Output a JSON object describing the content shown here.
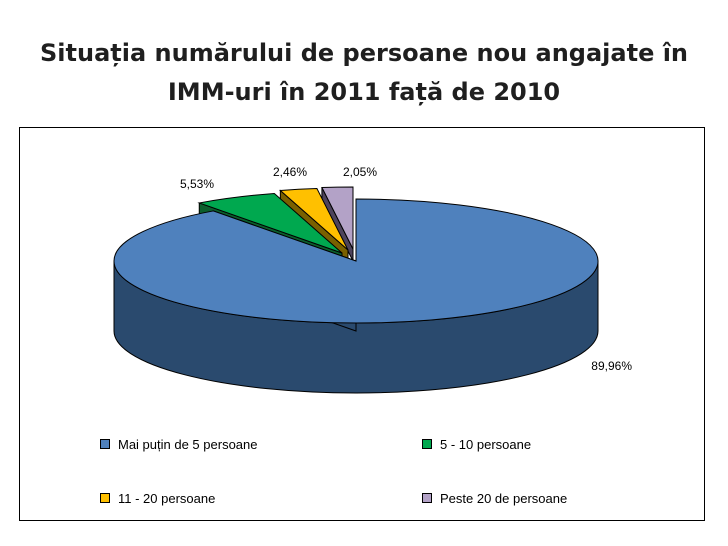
{
  "title": "Situația numărului de persoane nou angajate în IMM-uri în 2011 față de 2010",
  "chart_data": {
    "type": "pie",
    "title": "Situația numărului de persoane nou angajate în IMM-uri în 2011 față de 2010",
    "style": "3d-exploded",
    "legend_position": "bottom",
    "slices": [
      {
        "label": "Mai puțin de 5 persoane",
        "value": 89.96,
        "display": "89,96%",
        "color": "#4f81bd",
        "side_color": "#2a4a6e"
      },
      {
        "label": "5 - 10 persoane",
        "value": 5.53,
        "display": "5,53%",
        "color": "#00a84f",
        "side_color": "#0b5e2c"
      },
      {
        "label": "11 - 20 persoane",
        "value": 2.46,
        "display": "2,46%",
        "color": "#ffc000",
        "side_color": "#7a6000"
      },
      {
        "label": "Peste 20 de persoane",
        "value": 2.05,
        "display": "2,05%",
        "color": "#b3a2c7",
        "side_color": "#4d435c"
      }
    ]
  }
}
